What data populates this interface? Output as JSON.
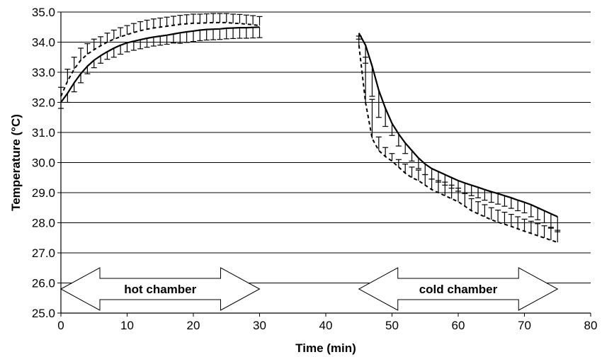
{
  "chart_data": {
    "type": "line",
    "title": "",
    "xlabel": "Time (min)",
    "ylabel": "Temperature (°C)",
    "xlim": [
      0,
      80
    ],
    "ylim": [
      25.0,
      35.0
    ],
    "x_ticks": [
      "0",
      "10",
      "20",
      "30",
      "40",
      "50",
      "60",
      "70",
      "80"
    ],
    "y_ticks": [
      "25.0",
      "26.0",
      "27.0",
      "28.0",
      "29.0",
      "30.0",
      "31.0",
      "32.0",
      "33.0",
      "34.0",
      "35.0"
    ],
    "grid": "horizontal",
    "legend": "none",
    "annotations": [
      {
        "text": "hot chamber",
        "x_range": [
          0,
          30
        ],
        "y": 25.8
      },
      {
        "text": "cold chamber",
        "x_range": [
          45,
          75
        ],
        "y": 25.8
      }
    ],
    "series": [
      {
        "style": "solid",
        "error_bar_direction": "down",
        "x": [
          0,
          1,
          2,
          3,
          4,
          5,
          6,
          7,
          8,
          9,
          10,
          11,
          12,
          13,
          14,
          15,
          16,
          17,
          18,
          19,
          20,
          21,
          22,
          23,
          24,
          25,
          26,
          27,
          28,
          29,
          30,
          45,
          46,
          47,
          48,
          49,
          50,
          51,
          52,
          53,
          54,
          55,
          56,
          57,
          58,
          59,
          60,
          61,
          62,
          63,
          64,
          65,
          66,
          67,
          68,
          69,
          70,
          71,
          72,
          73,
          74,
          75
        ],
        "y": [
          32.0,
          32.3,
          32.65,
          32.95,
          33.2,
          33.4,
          33.55,
          33.68,
          33.8,
          33.9,
          33.98,
          34.03,
          34.08,
          34.13,
          34.17,
          34.2,
          34.23,
          34.27,
          34.31,
          34.34,
          34.37,
          34.4,
          34.42,
          34.43,
          34.44,
          34.46,
          34.47,
          34.48,
          34.48,
          34.49,
          34.5,
          34.3,
          33.9,
          33.2,
          32.4,
          31.8,
          31.3,
          30.95,
          30.65,
          30.4,
          30.15,
          29.95,
          29.8,
          29.7,
          29.6,
          29.5,
          29.4,
          29.32,
          29.25,
          29.18,
          29.1,
          29.03,
          28.97,
          28.9,
          28.83,
          28.75,
          28.68,
          28.6,
          28.5,
          28.4,
          28.3,
          28.2
        ],
        "error": [
          0.2,
          0.3,
          0.3,
          0.3,
          0.25,
          0.25,
          0.25,
          0.25,
          0.3,
          0.3,
          0.3,
          0.3,
          0.3,
          0.3,
          0.3,
          0.3,
          0.3,
          0.3,
          0.35,
          0.35,
          0.35,
          0.35,
          0.35,
          0.35,
          0.35,
          0.35,
          0.35,
          0.35,
          0.35,
          0.35,
          0.35,
          0.2,
          0.6,
          1.0,
          0.9,
          0.6,
          0.4,
          0.4,
          0.35,
          0.35,
          0.35,
          0.35,
          0.35,
          0.35,
          0.35,
          0.35,
          0.35,
          0.35,
          0.35,
          0.35,
          0.35,
          0.35,
          0.35,
          0.35,
          0.35,
          0.35,
          0.35,
          0.4,
          0.4,
          0.4,
          0.45,
          0.5
        ]
      },
      {
        "style": "dashed",
        "error_bar_direction": "up",
        "x": [
          0,
          1,
          2,
          3,
          4,
          5,
          6,
          7,
          8,
          9,
          10,
          11,
          12,
          13,
          14,
          15,
          16,
          17,
          18,
          19,
          20,
          21,
          22,
          23,
          24,
          25,
          26,
          27,
          28,
          29,
          30,
          45,
          46,
          47,
          48,
          49,
          50,
          51,
          52,
          53,
          54,
          55,
          56,
          57,
          58,
          59,
          60,
          61,
          62,
          63,
          64,
          65,
          66,
          67,
          68,
          69,
          70,
          71,
          72,
          73,
          74,
          75
        ],
        "y": [
          32.2,
          32.7,
          33.1,
          33.4,
          33.6,
          33.75,
          33.88,
          34.0,
          34.1,
          34.18,
          34.25,
          34.32,
          34.38,
          34.43,
          34.47,
          34.5,
          34.53,
          34.56,
          34.59,
          34.61,
          34.63,
          34.63,
          34.64,
          34.65,
          34.65,
          34.65,
          34.63,
          34.62,
          34.6,
          34.58,
          34.55,
          33.9,
          32.0,
          30.8,
          30.4,
          30.2,
          30.05,
          29.85,
          29.65,
          29.5,
          29.4,
          29.25,
          29.1,
          29.0,
          28.9,
          28.8,
          28.7,
          28.55,
          28.4,
          28.3,
          28.2,
          28.1,
          28.02,
          27.95,
          27.88,
          27.8,
          27.72,
          27.65,
          27.57,
          27.5,
          27.42,
          27.35
        ],
        "error": [
          0.3,
          0.4,
          0.4,
          0.4,
          0.35,
          0.35,
          0.3,
          0.3,
          0.3,
          0.3,
          0.3,
          0.3,
          0.3,
          0.3,
          0.3,
          0.3,
          0.3,
          0.3,
          0.3,
          0.3,
          0.3,
          0.3,
          0.3,
          0.3,
          0.3,
          0.3,
          0.3,
          0.3,
          0.3,
          0.3,
          0.3,
          0.3,
          1.5,
          1.3,
          0.45,
          0.3,
          0.25,
          0.25,
          0.3,
          0.35,
          0.35,
          0.35,
          0.35,
          0.4,
          0.45,
          0.45,
          0.45,
          0.45,
          0.4,
          0.4,
          0.4,
          0.4,
          0.4,
          0.4,
          0.4,
          0.4,
          0.4,
          0.4,
          0.4,
          0.4,
          0.4,
          0.4
        ]
      }
    ]
  }
}
